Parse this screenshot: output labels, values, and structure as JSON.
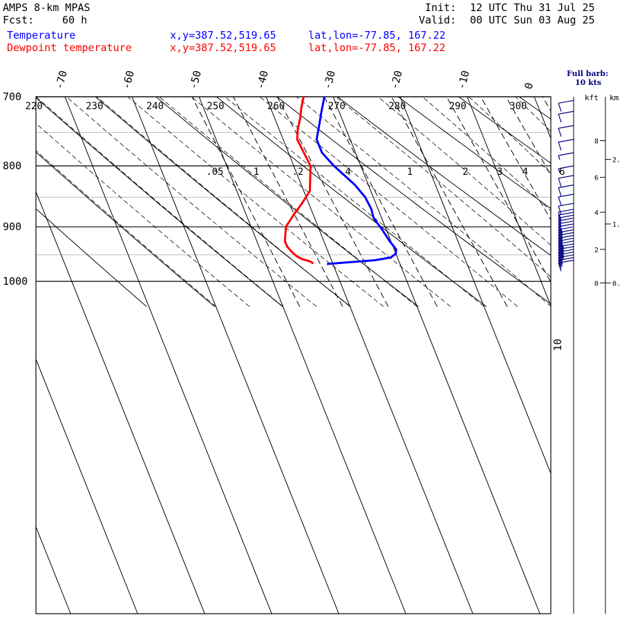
{
  "header": {
    "model": "AMPS 8-km MPAS",
    "forecast_label": "Fcst:",
    "forecast_value": "60 h",
    "init_label": "Init:",
    "init_value": "12 UTC Thu 31 Jul 25",
    "valid_label": "Valid:",
    "valid_value": "00 UTC Sun 03 Aug 25",
    "temperature_label": "Temperature",
    "dewpoint_label": "Dewpoint temperature",
    "xy_text": "x,y=387.52,519.65",
    "latlon_text": "lat,lon=-77.85, 167.22",
    "barb_note_line1": "Full barb:",
    "barb_note_line2": "10 kts"
  },
  "colors": {
    "temperature": "#0000ff",
    "dewpoint": "#ff0000",
    "wind": "#000080",
    "grid": "#000000",
    "minor_grid": "#bbbbbb"
  },
  "chart_data": {
    "type": "line",
    "subtype": "skew-T log-p sounding",
    "y_axis": "pressure (hPa), log scale",
    "ylim": [
      1045,
      700
    ],
    "pressure_ticks": [
      700,
      800,
      900,
      1000
    ],
    "temperature_ticks": [
      -70,
      -60,
      -50,
      -40,
      -30,
      -20,
      -10,
      0
    ],
    "theta_ticks": [
      220,
      230,
      240,
      250,
      260,
      270,
      280,
      290,
      300
    ],
    "mixing_ratio_ticks": [
      ".05",
      ".1",
      ".2",
      ".4",
      "1",
      "2",
      "3",
      "4",
      "6"
    ],
    "moist_adiabat_label": "10",
    "height_axis_kft_label": "kft",
    "height_axis_km_label": "km",
    "height_kft_ticks": [
      "0",
      "2",
      "4",
      "6",
      "8"
    ],
    "height_km_ticks": [
      "0.",
      "1.",
      "2."
    ],
    "series": [
      {
        "name": "Temperature",
        "pressure": [
          967,
          960,
          955,
          948,
          940,
          925,
          905,
          885,
          870,
          850,
          830,
          800,
          780,
          760,
          740,
          720,
          700
        ],
        "values": [
          -40.9,
          -33.5,
          -31.0,
          -30.0,
          -29.7,
          -30.2,
          -30.6,
          -31.2,
          -31.0,
          -31.2,
          -32.0,
          -34.0,
          -35.0,
          -35.0,
          -33.8,
          -32.6,
          -31.3
        ]
      },
      {
        "name": "Dewpoint temperature",
        "pressure": [
          966,
          962,
          958,
          952,
          945,
          935,
          925,
          900,
          880,
          860,
          840,
          820,
          800,
          780,
          760,
          745,
          730,
          715,
          700
        ],
        "values": [
          -42.9,
          -43.3,
          -44.3,
          -45.0,
          -45.4,
          -45.8,
          -45.8,
          -44.8,
          -43.0,
          -41.0,
          -39.1,
          -38.3,
          -37.5,
          -37.7,
          -37.9,
          -37.2,
          -36.2,
          -35.4,
          -34.4
        ]
      }
    ],
    "winds": {
      "description": "wind barbs along right-hand staff",
      "pressure": [
        960,
        955,
        950,
        945,
        940,
        935,
        930,
        925,
        920,
        915,
        910,
        905,
        900,
        895,
        890,
        885,
        880,
        875,
        870,
        860,
        845,
        830,
        815,
        800,
        780,
        760,
        740,
        720,
        705
      ],
      "speed_kts": [
        15,
        15,
        15,
        15,
        20,
        20,
        20,
        20,
        20,
        15,
        15,
        15,
        15,
        10,
        10,
        10,
        10,
        10,
        10,
        10,
        10,
        10,
        10,
        5,
        5,
        10,
        10,
        10,
        10
      ]
    }
  }
}
